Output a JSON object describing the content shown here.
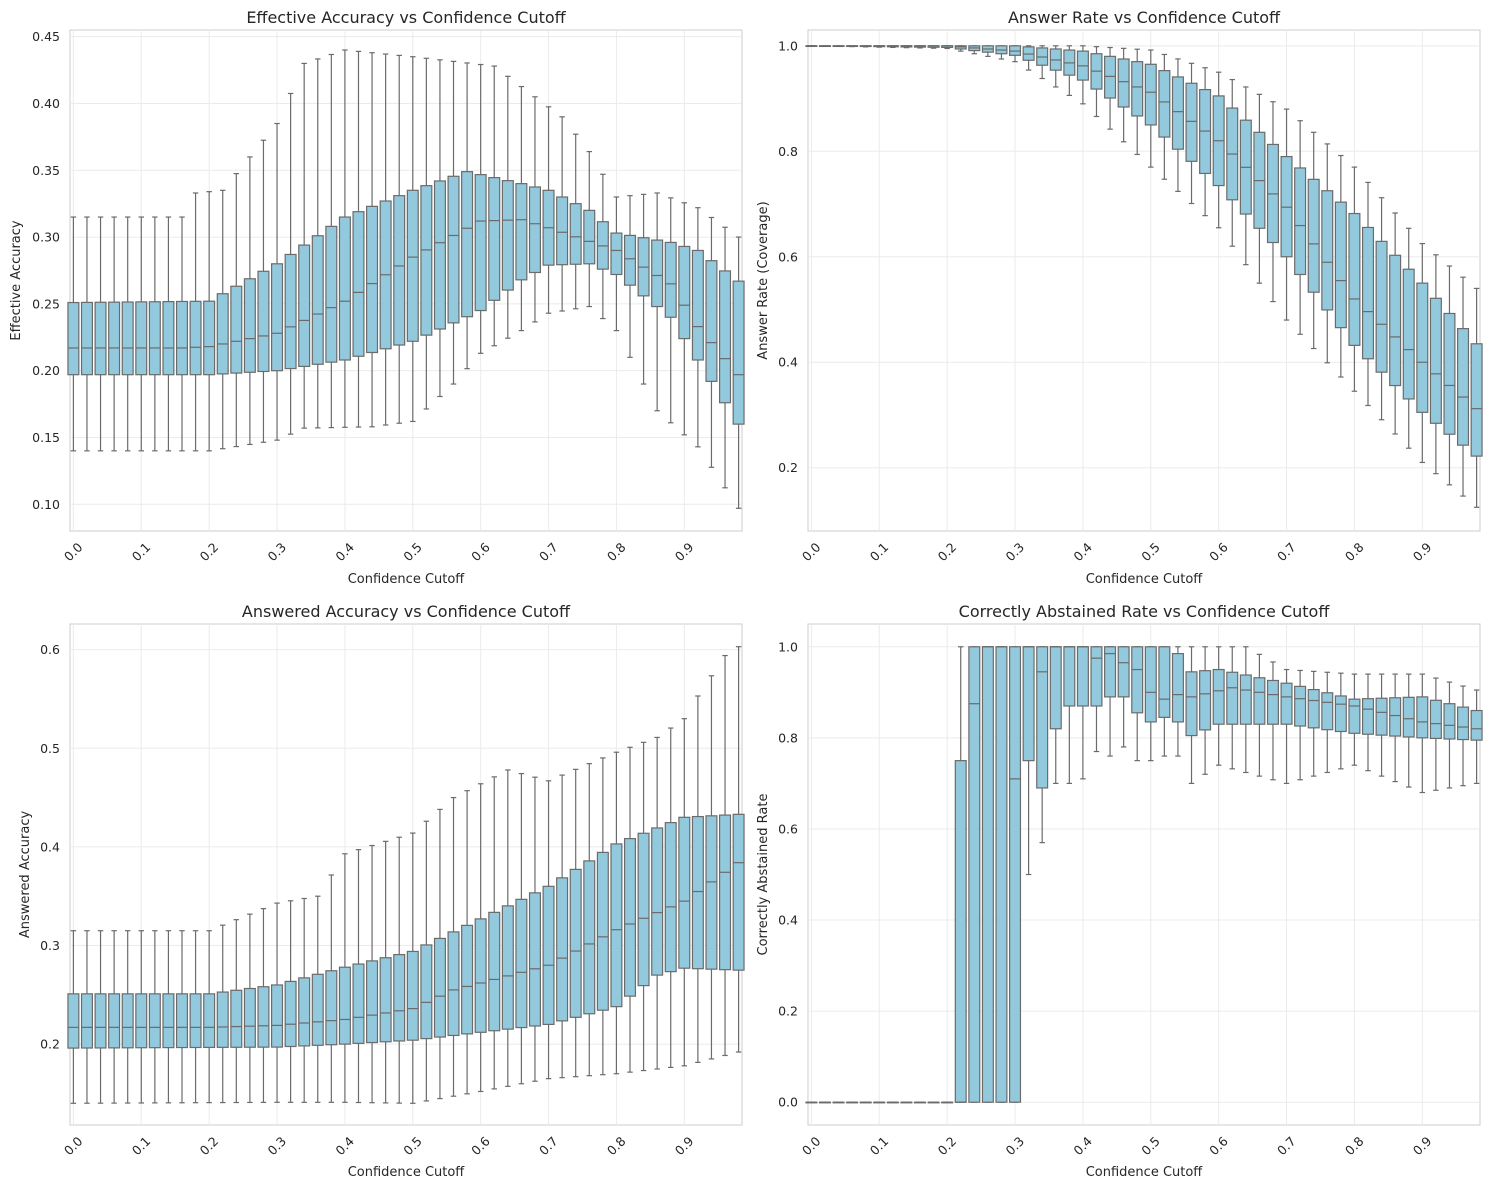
{
  "figure": {
    "style": "seaborn-whitegrid",
    "box_color": "#92c9dd",
    "edge_color": "#6b6b6b"
  },
  "chart_data": [
    {
      "type": "box",
      "title": "Effective Accuracy vs Confidence Cutoff",
      "xlabel": "Confidence Cutoff",
      "ylabel": "Effective Accuracy",
      "ylim": [
        0.08,
        0.455
      ],
      "yticks": [
        0.1,
        0.15,
        0.2,
        0.25,
        0.3,
        0.35,
        0.4,
        0.45
      ],
      "ytick_labels": [
        "0.10",
        "0.15",
        "0.20",
        "0.25",
        "0.30",
        "0.35",
        "0.40",
        "0.45"
      ],
      "xtick_labels": [
        "0.0",
        "0.1",
        "0.2",
        "0.3",
        "0.4",
        "0.5",
        "0.6",
        "0.7",
        "0.8",
        "0.9"
      ],
      "x_start": 0.0,
      "x_step": 0.02,
      "n_boxes": 50,
      "stats": {
        "med_anchor": [
          [
            0,
            0.217
          ],
          [
            0.16,
            0.217
          ],
          [
            0.2,
            0.218
          ],
          [
            0.3,
            0.228
          ],
          [
            0.4,
            0.252
          ],
          [
            0.5,
            0.285
          ],
          [
            0.6,
            0.312
          ],
          [
            0.66,
            0.313
          ],
          [
            0.7,
            0.307
          ],
          [
            0.8,
            0.29
          ],
          [
            0.88,
            0.265
          ],
          [
            0.92,
            0.233
          ],
          [
            0.98,
            0.197
          ]
        ],
        "q1_anchor": [
          [
            0,
            0.197
          ],
          [
            0.2,
            0.197
          ],
          [
            0.3,
            0.2
          ],
          [
            0.4,
            0.208
          ],
          [
            0.5,
            0.222
          ],
          [
            0.6,
            0.245
          ],
          [
            0.66,
            0.268
          ],
          [
            0.7,
            0.279
          ],
          [
            0.76,
            0.28
          ],
          [
            0.8,
            0.272
          ],
          [
            0.88,
            0.24
          ],
          [
            0.92,
            0.208
          ],
          [
            0.98,
            0.16
          ]
        ],
        "q3_anchor": [
          [
            0,
            0.251
          ],
          [
            0.2,
            0.252
          ],
          [
            0.3,
            0.28
          ],
          [
            0.4,
            0.315
          ],
          [
            0.5,
            0.335
          ],
          [
            0.58,
            0.349
          ],
          [
            0.66,
            0.34
          ],
          [
            0.7,
            0.335
          ],
          [
            0.76,
            0.32
          ],
          [
            0.8,
            0.303
          ],
          [
            0.88,
            0.296
          ],
          [
            0.92,
            0.29
          ],
          [
            0.98,
            0.267
          ]
        ],
        "wlo_anchor": [
          [
            0,
            0.14
          ],
          [
            0.2,
            0.14
          ],
          [
            0.3,
            0.148
          ],
          [
            0.34,
            0.157
          ],
          [
            0.44,
            0.158
          ],
          [
            0.5,
            0.162
          ],
          [
            0.56,
            0.19
          ],
          [
            0.6,
            0.213
          ],
          [
            0.66,
            0.23
          ],
          [
            0.7,
            0.243
          ],
          [
            0.76,
            0.248
          ],
          [
            0.8,
            0.23
          ],
          [
            0.86,
            0.17
          ],
          [
            0.92,
            0.143
          ],
          [
            0.98,
            0.097
          ]
        ],
        "whi_anchor": [
          [
            0,
            0.315
          ],
          [
            0.16,
            0.315
          ],
          [
            0.18,
            0.333
          ],
          [
            0.22,
            0.335
          ],
          [
            0.3,
            0.385
          ],
          [
            0.34,
            0.43
          ],
          [
            0.4,
            0.44
          ],
          [
            0.5,
            0.435
          ],
          [
            0.62,
            0.428
          ],
          [
            0.68,
            0.405
          ],
          [
            0.72,
            0.39
          ],
          [
            0.76,
            0.364
          ],
          [
            0.8,
            0.33
          ],
          [
            0.86,
            0.333
          ],
          [
            0.92,
            0.322
          ],
          [
            0.98,
            0.3
          ]
        ]
      }
    },
    {
      "type": "box",
      "title": "Answer Rate vs Confidence Cutoff",
      "xlabel": "Confidence Cutoff",
      "ylabel": "Answer Rate (Coverage)",
      "ylim": [
        0.08,
        1.03
      ],
      "yticks": [
        0.2,
        0.4,
        0.6,
        0.8,
        1.0
      ],
      "ytick_labels": [
        "0.2",
        "0.4",
        "0.6",
        "0.8",
        "1.0"
      ],
      "xtick_labels": [
        "0.0",
        "0.1",
        "0.2",
        "0.3",
        "0.4",
        "0.5",
        "0.6",
        "0.7",
        "0.8",
        "0.9"
      ],
      "x_start": 0.0,
      "x_step": 0.02,
      "n_boxes": 50,
      "stats": {
        "med_anchor": [
          [
            0,
            1.0
          ],
          [
            0.2,
            1.0
          ],
          [
            0.3,
            0.99
          ],
          [
            0.4,
            0.962
          ],
          [
            0.5,
            0.912
          ],
          [
            0.6,
            0.82
          ],
          [
            0.7,
            0.694
          ],
          [
            0.8,
            0.52
          ],
          [
            0.9,
            0.4
          ],
          [
            0.98,
            0.312
          ]
        ],
        "q1_anchor": [
          [
            0,
            1.0
          ],
          [
            0.2,
            0.997
          ],
          [
            0.3,
            0.982
          ],
          [
            0.4,
            0.935
          ],
          [
            0.5,
            0.85
          ],
          [
            0.6,
            0.735
          ],
          [
            0.7,
            0.6
          ],
          [
            0.8,
            0.432
          ],
          [
            0.9,
            0.305
          ],
          [
            0.98,
            0.222
          ]
        ],
        "q3_anchor": [
          [
            0,
            1.0
          ],
          [
            0.2,
            1.0
          ],
          [
            0.3,
            1.0
          ],
          [
            0.4,
            0.99
          ],
          [
            0.5,
            0.965
          ],
          [
            0.6,
            0.905
          ],
          [
            0.7,
            0.79
          ],
          [
            0.8,
            0.682
          ],
          [
            0.9,
            0.55
          ],
          [
            0.98,
            0.435
          ]
        ],
        "wlo_anchor": [
          [
            0,
            1.0
          ],
          [
            0.2,
            0.995
          ],
          [
            0.3,
            0.97
          ],
          [
            0.4,
            0.89
          ],
          [
            0.5,
            0.77
          ],
          [
            0.6,
            0.655
          ],
          [
            0.7,
            0.48
          ],
          [
            0.8,
            0.345
          ],
          [
            0.9,
            0.21
          ],
          [
            0.98,
            0.125
          ]
        ],
        "whi_anchor": [
          [
            0,
            1.0
          ],
          [
            0.4,
            1.0
          ],
          [
            0.5,
            0.992
          ],
          [
            0.6,
            0.95
          ],
          [
            0.7,
            0.88
          ],
          [
            0.8,
            0.77
          ],
          [
            0.9,
            0.625
          ],
          [
            0.98,
            0.54
          ]
        ]
      }
    },
    {
      "type": "box",
      "title": "Answered Accuracy vs Confidence Cutoff",
      "xlabel": "Confidence Cutoff",
      "ylabel": "Answered Accuracy",
      "ylim": [
        0.118,
        0.626
      ],
      "yticks": [
        0.2,
        0.3,
        0.4,
        0.5,
        0.6
      ],
      "ytick_labels": [
        "0.2",
        "0.3",
        "0.4",
        "0.5",
        "0.6"
      ],
      "xtick_labels": [
        "0.0",
        "0.1",
        "0.2",
        "0.3",
        "0.4",
        "0.5",
        "0.6",
        "0.7",
        "0.8",
        "0.9"
      ],
      "x_start": 0.0,
      "x_step": 0.02,
      "n_boxes": 50,
      "stats": {
        "med_anchor": [
          [
            0,
            0.217
          ],
          [
            0.2,
            0.217
          ],
          [
            0.3,
            0.219
          ],
          [
            0.4,
            0.225
          ],
          [
            0.5,
            0.236
          ],
          [
            0.56,
            0.255
          ],
          [
            0.6,
            0.262
          ],
          [
            0.7,
            0.28
          ],
          [
            0.8,
            0.316
          ],
          [
            0.9,
            0.345
          ],
          [
            0.98,
            0.384
          ]
        ],
        "q1_anchor": [
          [
            0,
            0.196
          ],
          [
            0.3,
            0.197
          ],
          [
            0.4,
            0.2
          ],
          [
            0.5,
            0.204
          ],
          [
            0.6,
            0.212
          ],
          [
            0.7,
            0.22
          ],
          [
            0.8,
            0.238
          ],
          [
            0.86,
            0.27
          ],
          [
            0.9,
            0.277
          ],
          [
            0.98,
            0.275
          ]
        ],
        "q3_anchor": [
          [
            0,
            0.251
          ],
          [
            0.2,
            0.251
          ],
          [
            0.3,
            0.26
          ],
          [
            0.4,
            0.278
          ],
          [
            0.5,
            0.294
          ],
          [
            0.6,
            0.327
          ],
          [
            0.7,
            0.36
          ],
          [
            0.8,
            0.403
          ],
          [
            0.9,
            0.43
          ],
          [
            0.98,
            0.433
          ]
        ],
        "wlo_anchor": [
          [
            0,
            0.14
          ],
          [
            0.3,
            0.141
          ],
          [
            0.4,
            0.141
          ],
          [
            0.5,
            0.14
          ],
          [
            0.6,
            0.152
          ],
          [
            0.7,
            0.165
          ],
          [
            0.8,
            0.17
          ],
          [
            0.9,
            0.178
          ],
          [
            0.98,
            0.192
          ]
        ],
        "whi_anchor": [
          [
            0,
            0.315
          ],
          [
            0.2,
            0.315
          ],
          [
            0.3,
            0.343
          ],
          [
            0.36,
            0.35
          ],
          [
            0.4,
            0.393
          ],
          [
            0.5,
            0.414
          ],
          [
            0.56,
            0.45
          ],
          [
            0.64,
            0.478
          ],
          [
            0.7,
            0.467
          ],
          [
            0.8,
            0.496
          ],
          [
            0.86,
            0.511
          ],
          [
            0.9,
            0.53
          ],
          [
            0.92,
            0.553
          ],
          [
            0.96,
            0.594
          ],
          [
            0.98,
            0.603
          ]
        ]
      }
    },
    {
      "type": "box",
      "title": "Correctly Abstained Rate vs Confidence Cutoff",
      "xlabel": "Confidence Cutoff",
      "ylabel": "Correctly Abstained Rate",
      "ylim": [
        -0.05,
        1.05
      ],
      "yticks": [
        0.0,
        0.2,
        0.4,
        0.6,
        0.8,
        1.0
      ],
      "ytick_labels": [
        "0.0",
        "0.2",
        "0.4",
        "0.6",
        "0.8",
        "1.0"
      ],
      "xtick_labels": [
        "0.0",
        "0.1",
        "0.2",
        "0.3",
        "0.4",
        "0.5",
        "0.6",
        "0.7",
        "0.8",
        "0.9"
      ],
      "x_start": 0.0,
      "x_step": 0.02,
      "n_boxes": 50,
      "stats": {
        "boxes_zero_until": 0.2,
        "explicit": {
          "0.22": [
            0.0,
            0.0,
            0.0,
            0.75,
            1.0
          ],
          "0.24": [
            0.0,
            0.0,
            0.875,
            1.0,
            1.0
          ],
          "0.26": [
            0.0,
            0.0,
            1.0,
            1.0,
            1.0
          ],
          "0.28": [
            0.0,
            0.0,
            1.0,
            1.0,
            1.0
          ],
          "0.30": [
            0.0,
            0.0,
            0.71,
            1.0,
            1.0
          ],
          "0.32": [
            0.5,
            0.75,
            1.0,
            1.0,
            1.0
          ],
          "0.34": [
            0.57,
            0.69,
            0.945,
            1.0,
            1.0
          ],
          "0.36": [
            0.7,
            0.82,
            1.0,
            1.0,
            1.0
          ],
          "0.38": [
            0.7,
            0.87,
            1.0,
            1.0,
            1.0
          ],
          "0.40": [
            0.71,
            0.87,
            1.0,
            1.0,
            1.0
          ],
          "0.42": [
            0.77,
            0.87,
            0.975,
            1.0,
            1.0
          ],
          "0.44": [
            0.76,
            0.89,
            0.985,
            1.0,
            1.0
          ],
          "0.46": [
            0.78,
            0.89,
            0.965,
            1.0,
            1.0
          ],
          "0.48": [
            0.75,
            0.855,
            0.95,
            1.0,
            1.0
          ],
          "0.50": [
            0.75,
            0.835,
            0.9,
            1.0,
            1.0
          ],
          "0.52": [
            0.76,
            0.845,
            0.885,
            1.0,
            1.0
          ],
          "0.54": [
            0.76,
            0.835,
            0.895,
            0.985,
            1.0
          ]
        },
        "med_anchor": [
          [
            0.56,
            0.89
          ],
          [
            0.62,
            0.91
          ],
          [
            0.7,
            0.89
          ],
          [
            0.8,
            0.87
          ],
          [
            0.9,
            0.835
          ],
          [
            0.98,
            0.82
          ]
        ],
        "q1_anchor": [
          [
            0.56,
            0.805
          ],
          [
            0.6,
            0.83
          ],
          [
            0.7,
            0.83
          ],
          [
            0.8,
            0.81
          ],
          [
            0.9,
            0.8
          ],
          [
            0.98,
            0.795
          ]
        ],
        "q3_anchor": [
          [
            0.56,
            0.945
          ],
          [
            0.6,
            0.95
          ],
          [
            0.7,
            0.92
          ],
          [
            0.8,
            0.885
          ],
          [
            0.9,
            0.89
          ],
          [
            0.98,
            0.86
          ]
        ],
        "wlo_anchor": [
          [
            0.56,
            0.7
          ],
          [
            0.6,
            0.74
          ],
          [
            0.7,
            0.7
          ],
          [
            0.8,
            0.74
          ],
          [
            0.9,
            0.68
          ],
          [
            0.98,
            0.7
          ]
        ],
        "whi_anchor": [
          [
            0.56,
            1.0
          ],
          [
            0.64,
            1.0
          ],
          [
            0.7,
            0.95
          ],
          [
            0.8,
            0.94
          ],
          [
            0.9,
            0.94
          ],
          [
            0.98,
            0.905
          ]
        ]
      }
    }
  ]
}
